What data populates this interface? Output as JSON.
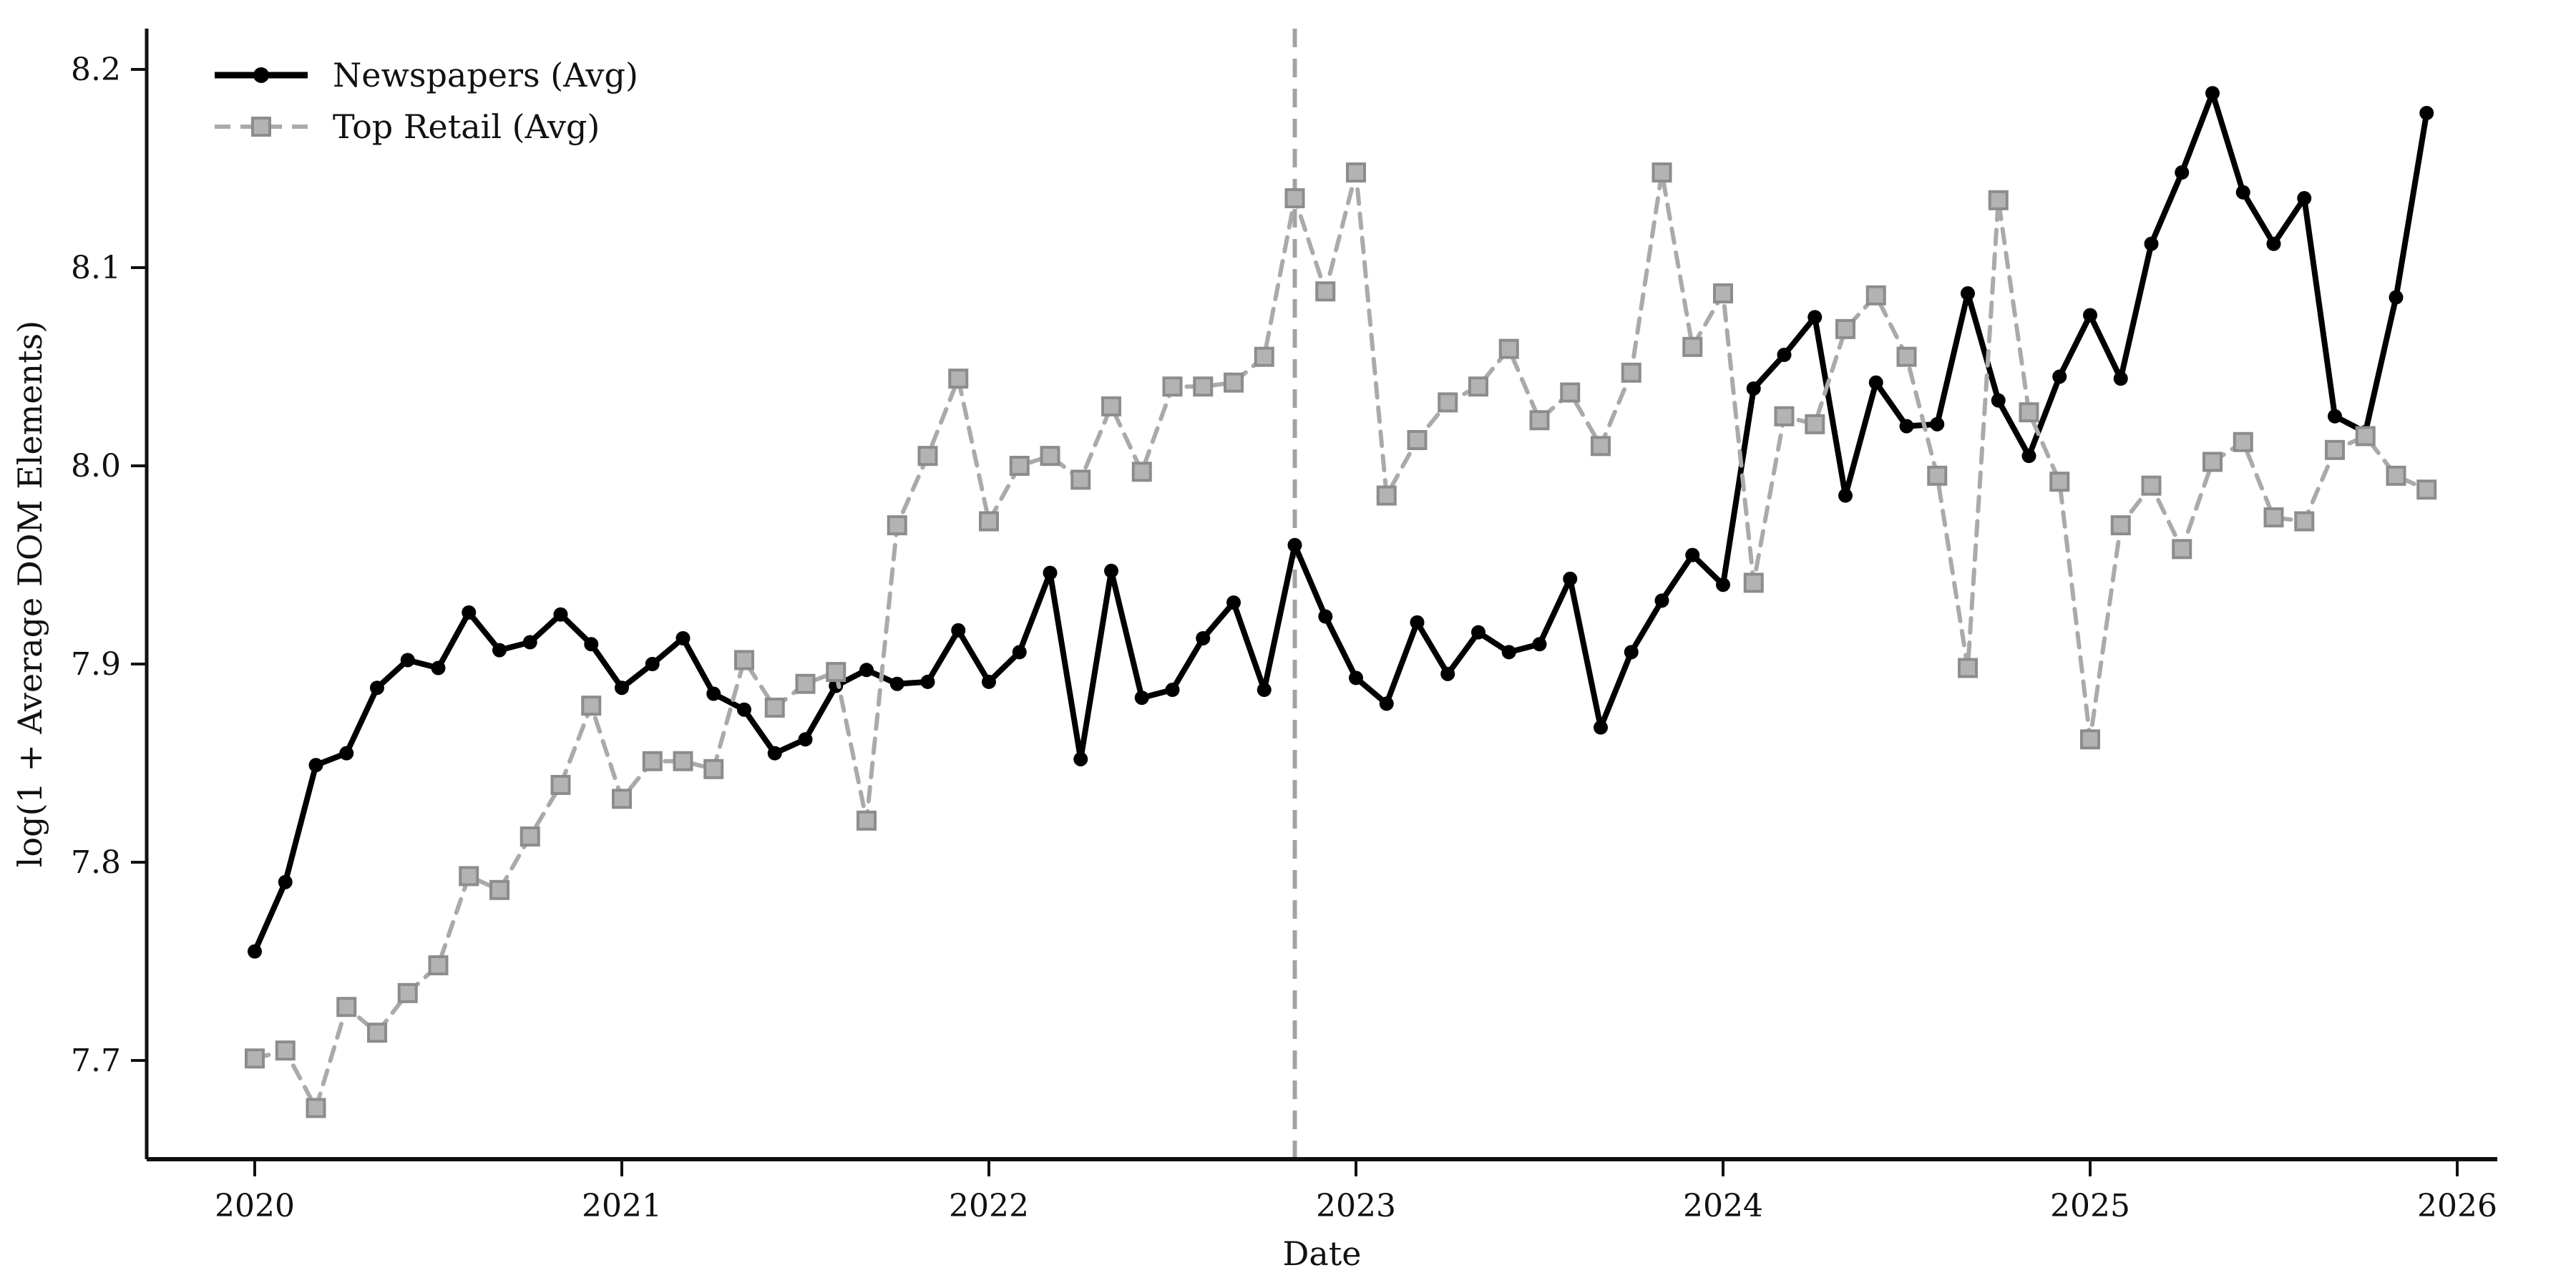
{
  "chart_data": {
    "type": "line",
    "title": "",
    "xlabel": "Date",
    "ylabel": "log(1 + Average DOM Elements)",
    "legend_position": "top-left",
    "grid": false,
    "background_color": "#ffffff",
    "axis_color": "#111111",
    "ylim": [
      7.652,
      8.221
    ],
    "yticks": [
      7.7,
      7.8,
      7.9,
      8.0,
      8.1,
      8.2
    ],
    "xtick_years": [
      2020,
      2021,
      2022,
      2023,
      2024,
      2025,
      2026
    ],
    "reference_line": {
      "x": "2022-11",
      "style": "dashed",
      "color": "#a3a3a3"
    },
    "x": [
      "2020-01",
      "2020-02",
      "2020-03",
      "2020-04",
      "2020-05",
      "2020-06",
      "2020-07",
      "2020-08",
      "2020-09",
      "2020-10",
      "2020-11",
      "2020-12",
      "2021-01",
      "2021-02",
      "2021-03",
      "2021-04",
      "2021-05",
      "2021-06",
      "2021-07",
      "2021-08",
      "2021-09",
      "2021-10",
      "2021-11",
      "2021-12",
      "2022-01",
      "2022-02",
      "2022-03",
      "2022-04",
      "2022-05",
      "2022-06",
      "2022-07",
      "2022-08",
      "2022-09",
      "2022-10",
      "2022-11",
      "2022-12",
      "2023-01",
      "2023-02",
      "2023-03",
      "2023-04",
      "2023-05",
      "2023-06",
      "2023-07",
      "2023-08",
      "2023-09",
      "2023-10",
      "2023-11",
      "2023-12",
      "2024-01",
      "2024-02",
      "2024-03",
      "2024-04",
      "2024-05",
      "2024-06",
      "2024-07",
      "2024-08",
      "2024-09",
      "2024-10",
      "2024-11",
      "2024-12",
      "2025-01",
      "2025-02",
      "2025-03",
      "2025-04",
      "2025-05",
      "2025-06",
      "2025-07",
      "2025-08",
      "2025-09",
      "2025-10",
      "2025-11",
      "2025-12"
    ],
    "series": [
      {
        "name": "Newspapers (Avg)",
        "color": "#000000",
        "line_style": "solid",
        "marker": "circle",
        "values": [
          7.755,
          7.79,
          7.849,
          7.855,
          7.888,
          7.902,
          7.898,
          7.926,
          7.907,
          7.911,
          7.925,
          7.91,
          7.888,
          7.9,
          7.913,
          7.885,
          7.877,
          7.855,
          7.862,
          7.889,
          7.897,
          7.89,
          7.891,
          7.917,
          7.891,
          7.906,
          7.946,
          7.852,
          7.947,
          7.883,
          7.887,
          7.913,
          7.931,
          7.887,
          7.96,
          7.924,
          7.893,
          7.88,
          7.921,
          7.895,
          7.916,
          7.906,
          7.91,
          7.943,
          7.868,
          7.906,
          7.932,
          7.955,
          7.94,
          8.039,
          8.056,
          8.075,
          7.985,
          8.042,
          8.02,
          8.021,
          8.087,
          8.033,
          8.005,
          8.045,
          8.076,
          8.044,
          8.112,
          8.148,
          8.188,
          8.138,
          8.112,
          8.135,
          8.025,
          8.017,
          8.085,
          8.178
        ]
      },
      {
        "name": "Top Retail (Avg)",
        "color": "#aaaaaa",
        "line_style": "dashed",
        "marker": "square",
        "values": [
          7.701,
          7.705,
          7.676,
          7.727,
          7.714,
          7.734,
          7.748,
          7.793,
          7.786,
          7.813,
          7.839,
          7.879,
          7.832,
          7.851,
          7.851,
          7.847,
          7.902,
          7.878,
          7.89,
          7.896,
          7.821,
          7.97,
          8.005,
          8.044,
          7.972,
          8.0,
          8.005,
          7.993,
          8.03,
          7.997,
          8.04,
          8.04,
          8.042,
          8.055,
          8.135,
          8.088,
          8.148,
          7.985,
          8.013,
          8.032,
          8.04,
          8.059,
          8.023,
          8.037,
          8.01,
          8.047,
          8.148,
          8.06,
          8.087,
          7.941,
          8.025,
          8.021,
          8.069,
          8.086,
          8.055,
          7.995,
          7.898,
          8.134,
          8.027,
          7.992,
          7.862,
          7.97,
          7.99,
          7.958,
          8.002,
          8.012,
          7.974,
          7.972,
          8.008,
          8.015,
          7.995,
          7.988
        ]
      }
    ]
  }
}
